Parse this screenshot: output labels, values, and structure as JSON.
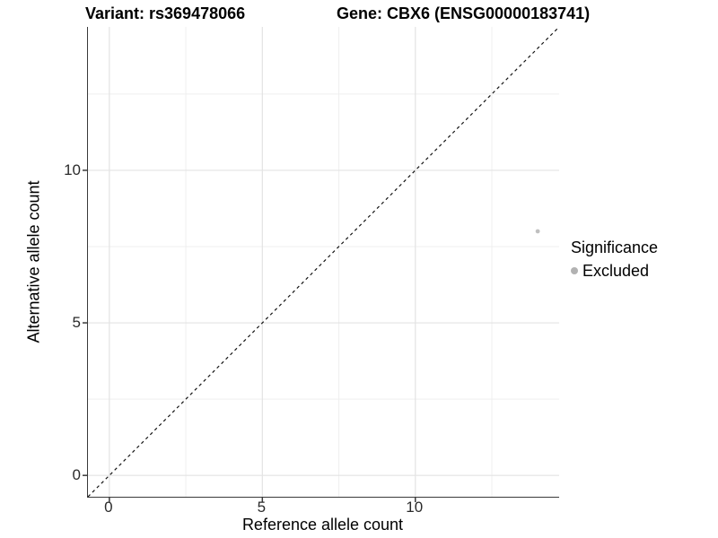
{
  "titles": {
    "variant": "Variant: rs369478066",
    "gene": "Gene: CBX6 (ENSG00000183741)"
  },
  "chart_data": {
    "type": "scatter",
    "title": "Variant: rs369478066 — Gene: CBX6 (ENSG00000183741)",
    "xlabel": "Reference allele count",
    "ylabel": "Alternative allele count",
    "xlim": [
      -0.7,
      14.7
    ],
    "ylim": [
      -0.7,
      14.7
    ],
    "x_ticks": [
      0,
      5,
      10
    ],
    "y_ticks": [
      0,
      5,
      10
    ],
    "x_minor_gridlines": [
      2.5,
      7.5,
      12.5
    ],
    "y_minor_gridlines": [
      2.5,
      7.5,
      12.5
    ],
    "grid": true,
    "legend_position": "right",
    "identity_line": {
      "slope": 1,
      "intercept": 0,
      "style": "dashed"
    },
    "series": [
      {
        "name": "Excluded",
        "points": [
          {
            "x": 14,
            "y": 8
          }
        ],
        "color": "#c0c0c0",
        "point_radius": 2.4
      }
    ],
    "legend": {
      "title": "Significance",
      "entries": [
        {
          "label": "Excluded",
          "color": "#b2b2b2"
        }
      ]
    }
  },
  "colors": {
    "background": "#ffffff",
    "axis_line": "#3a3a3a",
    "grid_major": "#e3e3e3",
    "grid_minor": "#efefef",
    "identity_line": "#141414",
    "tick_text": "#2b2b2b",
    "text": "#000000"
  }
}
